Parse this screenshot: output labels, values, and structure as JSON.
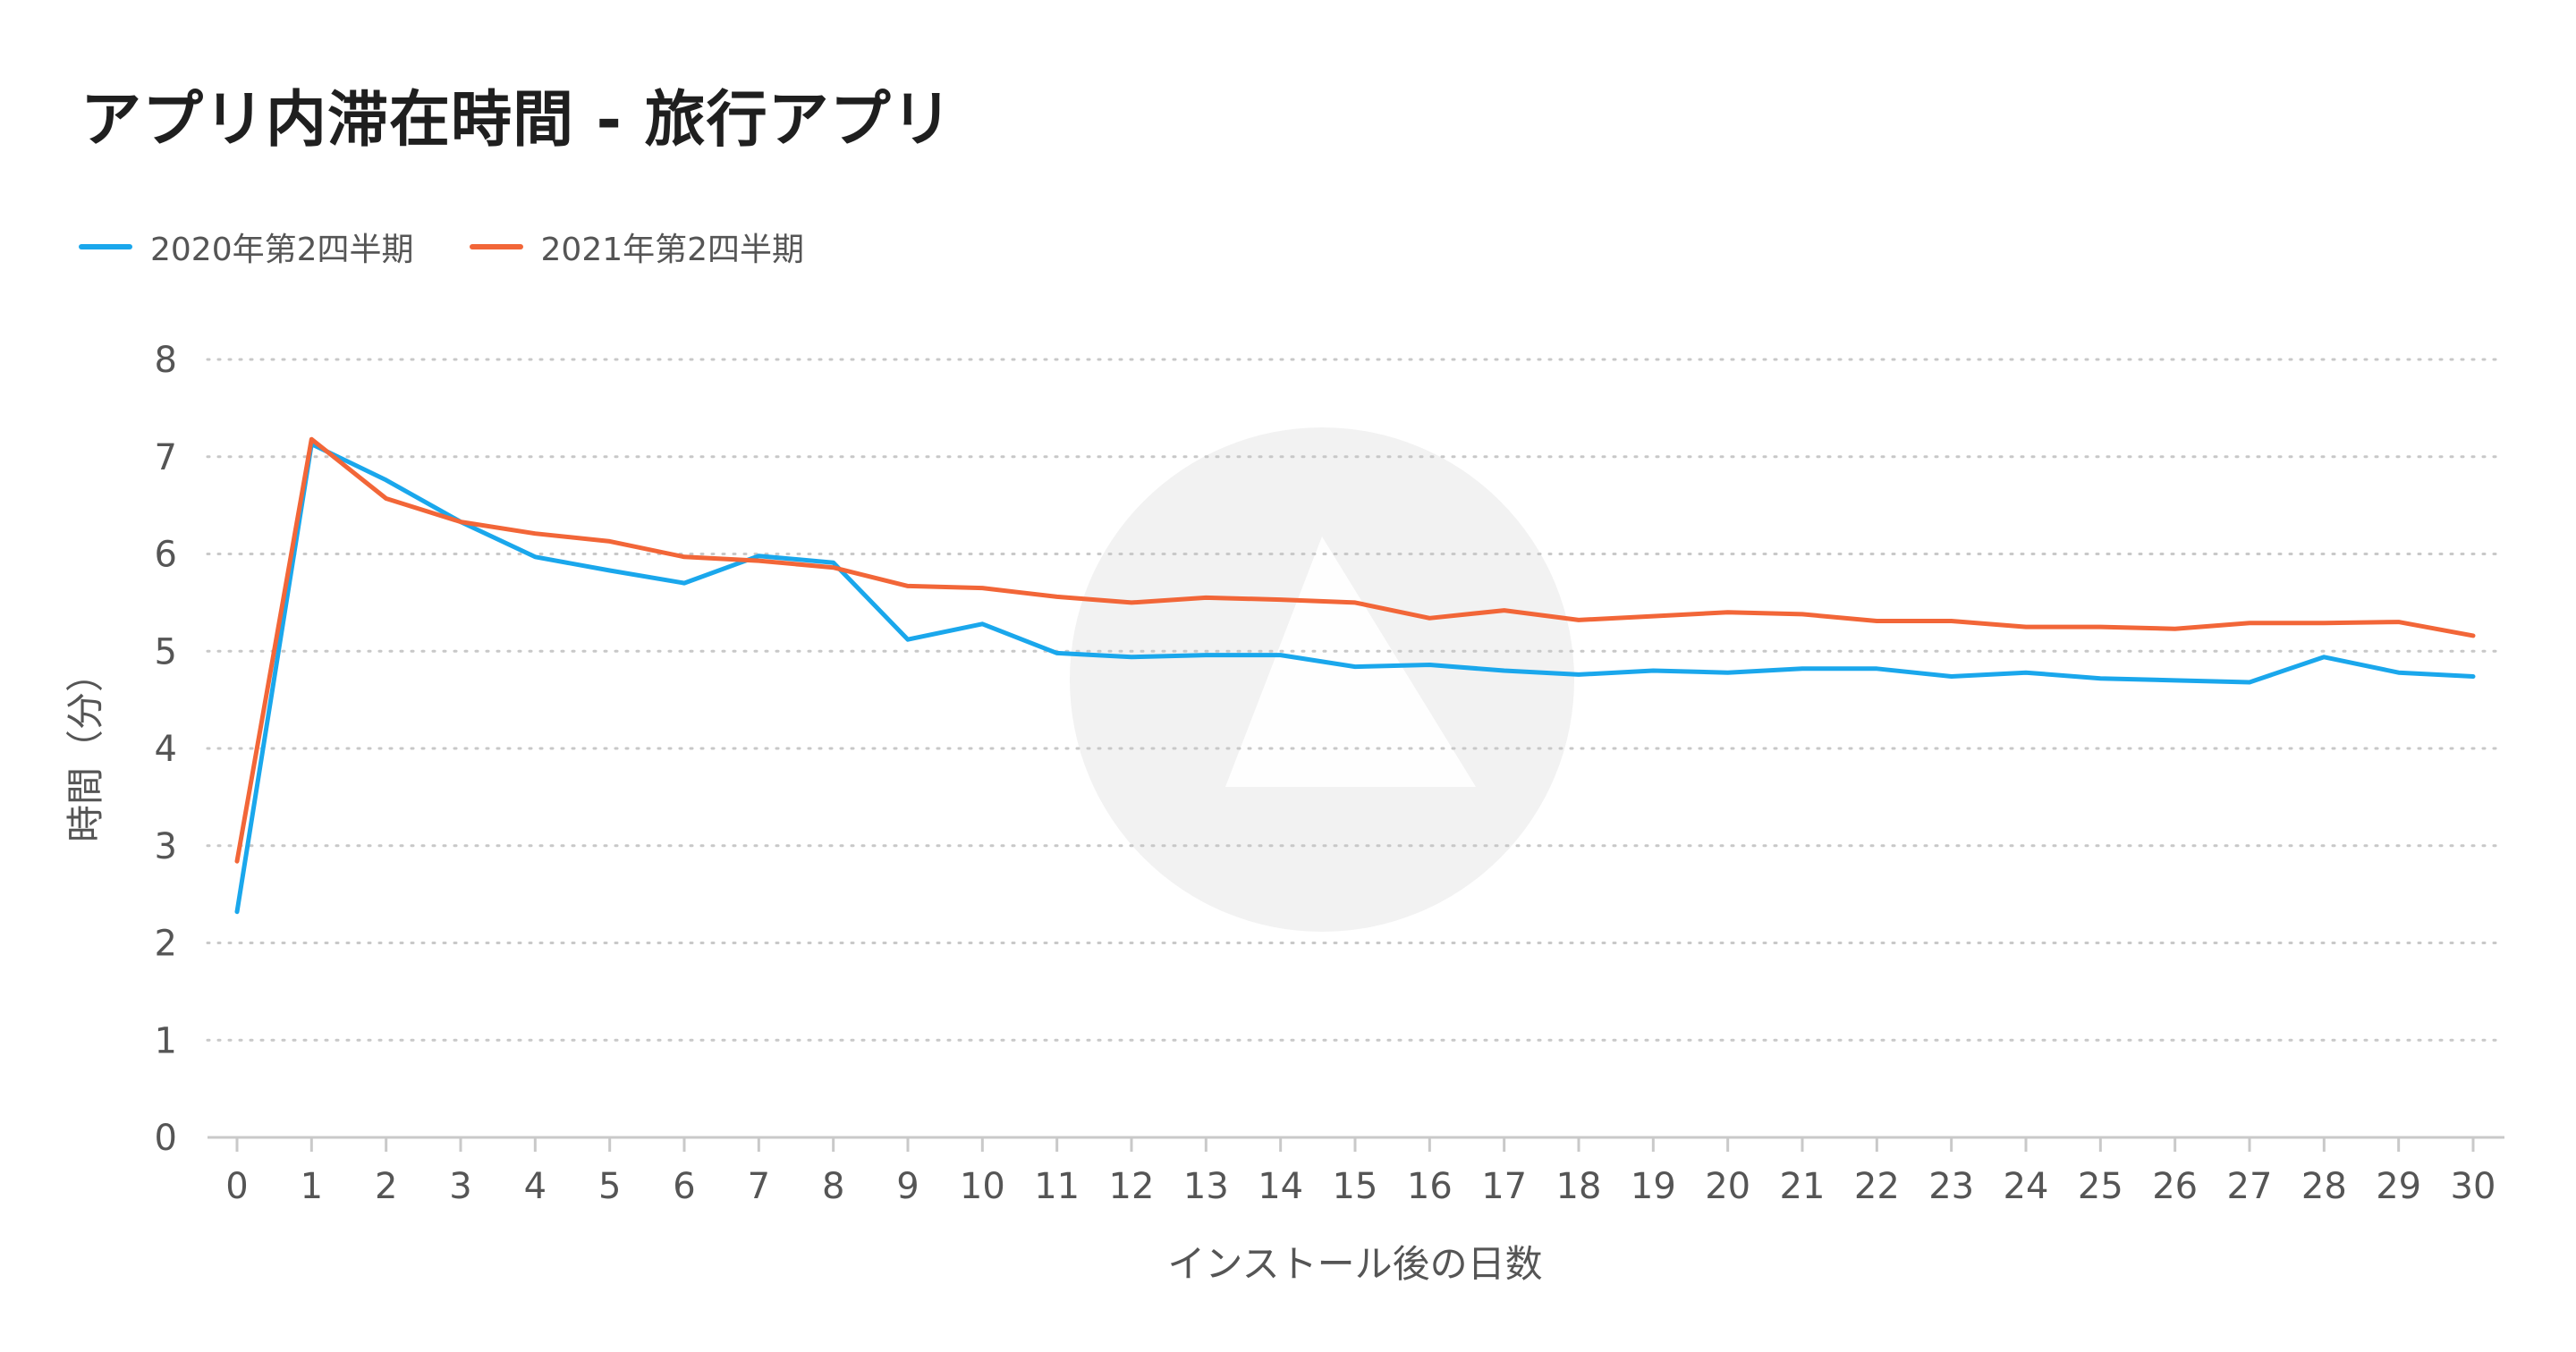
{
  "chart_data": {
    "type": "line",
    "title": "アプリ内滞在時間 - 旅行アプリ",
    "xlabel": "インストール後の日数",
    "ylabel": "時間（分）",
    "ylim": [
      0,
      8
    ],
    "yticks": [
      0,
      1,
      2,
      3,
      4,
      5,
      6,
      7,
      8
    ],
    "grid": true,
    "legend_position": "top-left",
    "x": [
      0,
      1,
      2,
      3,
      4,
      5,
      6,
      7,
      8,
      9,
      10,
      11,
      12,
      13,
      14,
      15,
      16,
      17,
      18,
      19,
      20,
      21,
      22,
      23,
      24,
      25,
      26,
      27,
      28,
      29,
      30
    ],
    "series": [
      {
        "name": "2020年第2四半期",
        "color": "#1aa7ec",
        "values": [
          2.32,
          7.13,
          6.76,
          6.33,
          5.97,
          5.83,
          5.7,
          5.98,
          5.91,
          5.12,
          5.28,
          4.98,
          4.94,
          4.96,
          4.96,
          4.84,
          4.86,
          4.8,
          4.76,
          4.8,
          4.78,
          4.82,
          4.82,
          4.74,
          4.78,
          4.72,
          4.7,
          4.68,
          4.94,
          4.78,
          4.74
        ]
      },
      {
        "name": "2021年第2四半期",
        "color": "#f26638",
        "values": [
          2.84,
          7.18,
          6.57,
          6.33,
          6.21,
          6.13,
          5.97,
          5.93,
          5.86,
          5.67,
          5.65,
          5.56,
          5.5,
          5.55,
          5.53,
          5.5,
          5.34,
          5.42,
          5.32,
          5.36,
          5.4,
          5.38,
          5.31,
          5.31,
          5.25,
          5.25,
          5.23,
          5.29,
          5.29,
          5.3,
          5.16
        ]
      }
    ]
  }
}
